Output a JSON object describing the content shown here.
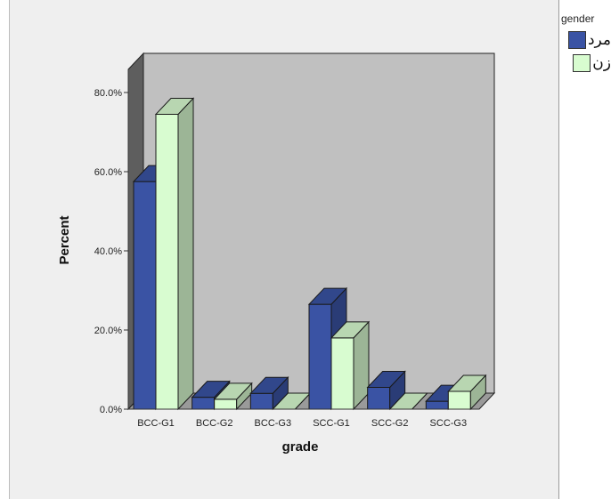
{
  "chart_data": {
    "type": "bar",
    "xlabel": "grade",
    "ylabel": "Percent",
    "categories": [
      "BCC-G1",
      "BCC-G2",
      "BCC-G3",
      "SCC-G1",
      "SCC-G2",
      "SCC-G3"
    ],
    "series": [
      {
        "name": "مرد",
        "color": "#3a53a4",
        "values": [
          57.5,
          3.0,
          4.0,
          26.5,
          5.5,
          2.0
        ]
      },
      {
        "name": "زن",
        "color": "#d8fcd0",
        "values": [
          74.5,
          2.5,
          0.0,
          18.0,
          0.0,
          4.5
        ]
      }
    ],
    "ylim": [
      0,
      80
    ],
    "yticks": [
      "0.0%",
      "20.0%",
      "40.0%",
      "60.0%",
      "80.0%"
    ],
    "legend_title": "gender",
    "legend_position": "top-right",
    "style": "3d-clustered-bar",
    "backwall_color": "#c0c0c0"
  }
}
